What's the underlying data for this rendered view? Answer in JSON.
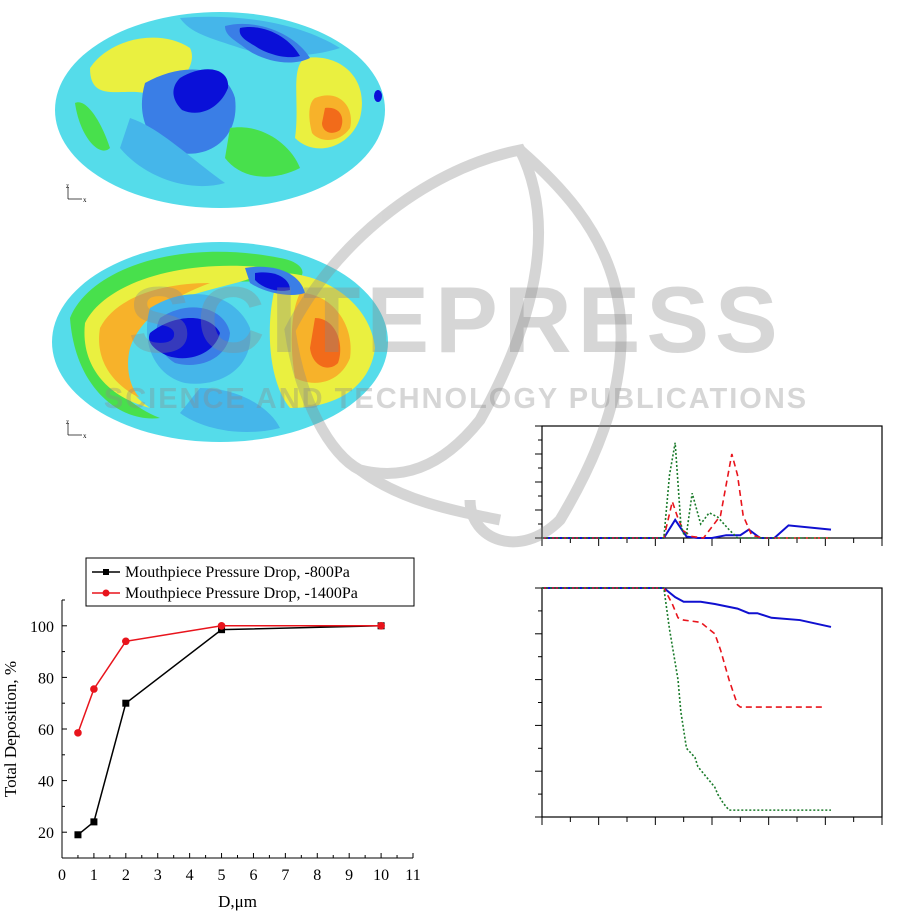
{
  "contour_plots": [
    {
      "axis_vertical": "z",
      "axis_horizontal": "x"
    },
    {
      "axis_vertical": "z",
      "axis_horizontal": "x"
    }
  ],
  "contour_colors": {
    "base": "#55dcea",
    "light_blue": "#45b6ea",
    "mid_blue": "#3a7ee6",
    "deep_blue": "#0a10d8",
    "green": "#48e04c",
    "yellow": "#eaf040",
    "orange": "#f7b22a",
    "red_orange": "#f26b1a"
  },
  "watermark": {
    "line1": "SCITEPRESS",
    "line2": "SCIENCE AND TECHNOLOGY PUBLICATIONS",
    "color": "#8a8a8a"
  },
  "chart_data": [
    {
      "type": "line",
      "legend": [
        "Mouthpiece Pressure Drop, -800Pa",
        "Mouthpiece Pressure Drop, -1400Pa"
      ],
      "xlabel": "D,μm",
      "ylabel": "Total Deposition, %",
      "xlim": [
        0,
        11
      ],
      "ylim": [
        10,
        110
      ],
      "x_ticks": [
        0,
        1,
        2,
        3,
        4,
        5,
        6,
        7,
        8,
        9,
        10,
        11
      ],
      "y_ticks": [
        20,
        40,
        60,
        80,
        100
      ],
      "legend_position": "top",
      "series": [
        {
          "name": "Mouthpiece Pressure Drop, -800Pa",
          "color": "#000000",
          "marker": "square",
          "x": [
            0.5,
            1,
            2,
            5,
            10
          ],
          "y": [
            19,
            24,
            70,
            98.5,
            100
          ]
        },
        {
          "name": "Mouthpiece Pressure Drop, -1400Pa",
          "color": "#e8141c",
          "marker": "circle",
          "x": [
            0.5,
            1,
            2,
            5,
            10
          ],
          "y": [
            58.5,
            75.5,
            94,
            100,
            100
          ]
        }
      ]
    },
    {
      "type": "line",
      "note": "axes without tick labels",
      "xlim": [
        0,
        12
      ],
      "ylim": [
        0,
        8
      ],
      "grid": false,
      "series": [
        {
          "color": "#1010d0",
          "style": "solid",
          "x": [
            0,
            4.3,
            4.7,
            5.1,
            5.5,
            6.0,
            6.5,
            7.0,
            7.3,
            7.7,
            8.2,
            8.7,
            10.2
          ],
          "y": [
            0,
            0,
            1.3,
            0.1,
            0,
            0,
            0.2,
            0.2,
            0.6,
            0,
            0,
            0.9,
            0.6
          ]
        },
        {
          "color": "#e8141c",
          "style": "dashed",
          "x": [
            0,
            4.3,
            4.6,
            4.8,
            5.0,
            5.3,
            5.7,
            6.0,
            6.3,
            6.7,
            6.9,
            7.1,
            7.4,
            7.8,
            10.2
          ],
          "y": [
            0,
            0,
            2.6,
            1.4,
            0.5,
            0.1,
            0,
            0.8,
            1.6,
            6.0,
            4.5,
            1.6,
            0.2,
            0,
            0
          ]
        },
        {
          "color": "#1a7a2a",
          "style": "dotted",
          "x": [
            0,
            4.3,
            4.5,
            4.7,
            4.9,
            5.0,
            5.1,
            5.3,
            5.6,
            5.9,
            6.2,
            6.6,
            6.9,
            7.3,
            10.2
          ],
          "y": [
            0,
            0,
            4.5,
            6.8,
            1.0,
            0.3,
            0.3,
            3.2,
            1.0,
            1.8,
            1.5,
            0.6,
            0,
            0,
            0
          ]
        }
      ]
    },
    {
      "type": "line",
      "note": "axes without tick labels",
      "xlim": [
        0,
        12
      ],
      "ylim": [
        0,
        10
      ],
      "grid": false,
      "series": [
        {
          "color": "#1010d0",
          "style": "solid",
          "x": [
            0,
            4.3,
            4.7,
            5.0,
            5.6,
            6.1,
            6.9,
            7.3,
            7.6,
            8.1,
            9.1,
            10.2
          ],
          "y": [
            10,
            10,
            9.6,
            9.4,
            9.4,
            9.3,
            9.1,
            8.9,
            8.9,
            8.7,
            8.6,
            8.3
          ]
        },
        {
          "color": "#e8141c",
          "style": "dashed",
          "x": [
            0,
            4.3,
            4.6,
            4.8,
            5.0,
            5.6,
            6.1,
            6.3,
            6.6,
            6.9,
            7.0,
            10.0
          ],
          "y": [
            10,
            10,
            9.3,
            8.7,
            8.6,
            8.5,
            8.0,
            7.3,
            6.0,
            4.9,
            4.8,
            4.8
          ]
        },
        {
          "color": "#1a7a2a",
          "style": "dotted",
          "x": [
            0,
            4.3,
            4.5,
            4.8,
            4.9,
            5.1,
            5.4,
            5.5,
            6.1,
            6.2,
            6.4,
            6.6,
            10.2
          ],
          "y": [
            10,
            10,
            8.2,
            6.0,
            4.6,
            3.0,
            2.6,
            2.2,
            1.3,
            1.0,
            0.6,
            0.3,
            0.3
          ]
        }
      ]
    }
  ]
}
